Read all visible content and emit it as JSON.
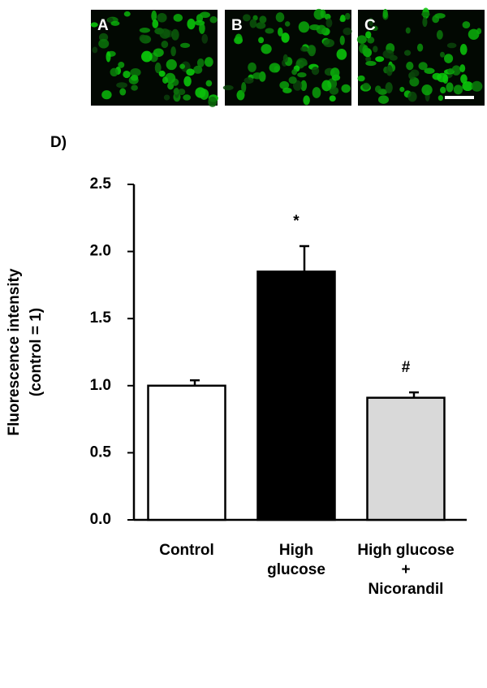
{
  "panels": [
    "A",
    "B",
    "C"
  ],
  "chart_data": {
    "type": "bar",
    "panel_label": "D)",
    "ylabel": [
      "Fluorescence intensity",
      "(control = 1)"
    ],
    "categories": [
      "Control",
      "High\nglucose",
      "High glucose\n+\nNicorandil"
    ],
    "values": [
      1.0,
      1.85,
      0.91
    ],
    "errors": [
      0.04,
      0.19,
      0.04
    ],
    "colors": [
      "#ffffff",
      "#000000",
      "#d9d9d9"
    ],
    "annotations": [
      null,
      "*",
      "#"
    ],
    "ylim": [
      0,
      2.5
    ],
    "yticks": [
      {
        "value": 0,
        "label": "0.0"
      },
      {
        "value": 0.5,
        "label": "0.5"
      },
      {
        "value": 1,
        "label": "1.0"
      },
      {
        "value": 1.5,
        "label": "1.5"
      },
      {
        "value": 2,
        "label": "2.0"
      },
      {
        "value": 2.5,
        "label": "2.5"
      }
    ]
  }
}
